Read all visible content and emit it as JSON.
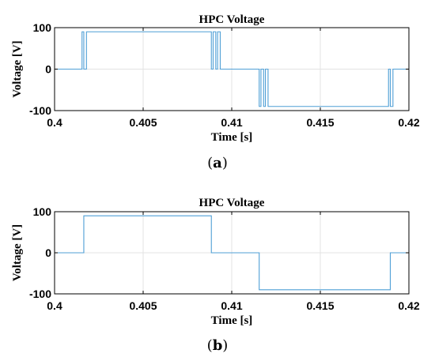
{
  "panels": [
    {
      "caption_letter": "a",
      "chart_data": {
        "type": "line",
        "title": "HPC Voltage",
        "xlabel": "Time [s]",
        "ylabel": "Voltage [V]",
        "xlim": [
          0.4,
          0.42
        ],
        "ylim": [
          -100,
          100
        ],
        "xticks": [
          0.4,
          0.405,
          0.41,
          0.415,
          0.42
        ],
        "xtick_labels": [
          "0.4",
          "0.405",
          "0.41",
          "0.415",
          "0.42"
        ],
        "yticks": [
          -100,
          0,
          100
        ],
        "ytick_labels": [
          "-100",
          "0",
          "100"
        ],
        "grid": true,
        "series": [
          {
            "color": "#4f9fd6",
            "x": [
              0.4,
              0.40155,
              0.40155,
              0.40165,
              0.40165,
              0.4018,
              0.4018,
              0.4019,
              0.4019,
              0.40885,
              0.40885,
              0.40895,
              0.40895,
              0.4091,
              0.4091,
              0.4092,
              0.4092,
              0.40935,
              0.40935,
              0.41155,
              0.41155,
              0.41165,
              0.41165,
              0.4118,
              0.4118,
              0.4119,
              0.4119,
              0.41205,
              0.41205,
              0.41885,
              0.41885,
              0.41895,
              0.41895,
              0.4191,
              0.4191,
              0.4192,
              0.4192,
              0.42
            ],
            "y": [
              0,
              0,
              90,
              90,
              0,
              0,
              90,
              90,
              90,
              90,
              0,
              0,
              90,
              90,
              0,
              0,
              90,
              90,
              0,
              0,
              -90,
              -90,
              0,
              0,
              -90,
              -90,
              0,
              0,
              -90,
              -90,
              0,
              0,
              -90,
              -90,
              0,
              0,
              0,
              0
            ]
          }
        ]
      }
    },
    {
      "caption_letter": "b",
      "chart_data": {
        "type": "line",
        "title": "HPC Voltage",
        "xlabel": "Time [s]",
        "ylabel": "Voltage [V]",
        "xlim": [
          0.4,
          0.42
        ],
        "ylim": [
          -100,
          100
        ],
        "xticks": [
          0.4,
          0.405,
          0.41,
          0.415,
          0.42
        ],
        "xtick_labels": [
          "0.4",
          "0.405",
          "0.41",
          "0.415",
          "0.42"
        ],
        "yticks": [
          -100,
          0,
          100
        ],
        "ytick_labels": [
          "-100",
          "0",
          "100"
        ],
        "grid": true,
        "series": [
          {
            "color": "#4f9fd6",
            "x": [
              0.4,
              0.40165,
              0.40165,
              0.40885,
              0.40885,
              0.41155,
              0.41155,
              0.41895,
              0.41895,
              0.42
            ],
            "y": [
              0,
              0,
              90,
              90,
              0,
              0,
              -90,
              -90,
              0,
              0
            ]
          }
        ]
      }
    }
  ]
}
